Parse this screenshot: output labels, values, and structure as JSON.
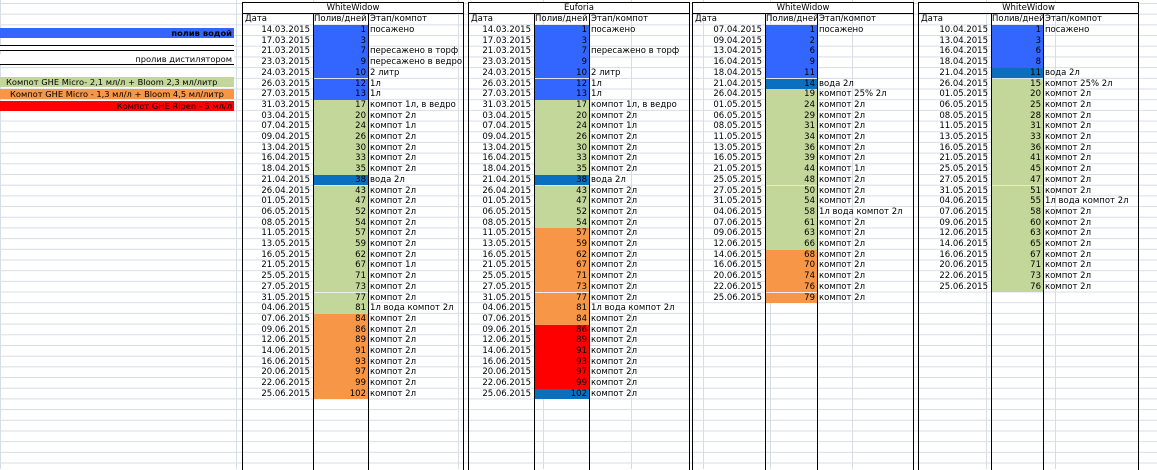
{
  "colors": {
    "blue": "#3366ff",
    "dark_blue": "#0a6fbf",
    "green": "#c4d79b",
    "orange": "#f79646",
    "red": "#ff0000",
    "grid": "#d6dde6"
  },
  "legend": [
    {
      "text": "полив водой",
      "bg": "#3366ff",
      "bold": true
    },
    {
      "text": "",
      "bg": "#ffffff",
      "boxed": true
    },
    {
      "text": "пролив дистилятором",
      "bg": "#ffffff",
      "underline": true
    },
    {
      "text": "Компот GHE Micro- 2,1 мл/л  + Bloom 2,3 мл/литр",
      "bg": "#c4d79b"
    },
    {
      "text": "Компот GHE Micro - 1,3 мл/л + Bloom 4,5 мл/литр",
      "bg": "#f79646"
    },
    {
      "text": "Компот GHE Ripen - 5 мл/л",
      "bg": "#ff0000"
    }
  ],
  "headers": {
    "date": "Дата",
    "val": "Полив/дней",
    "note": "Этап/компот"
  },
  "blocks": [
    {
      "title": "WhiteWidow",
      "rows": [
        [
          "14.03.2015",
          "1",
          "посажено",
          "B"
        ],
        [
          "17.03.2015",
          "3",
          "",
          "B"
        ],
        [
          "21.03.2015",
          "7",
          "пересажено в торф",
          "B"
        ],
        [
          "23.03.2015",
          "9",
          "пересажено в ведро",
          "B"
        ],
        [
          "24.03.2015",
          "10",
          "2 литр",
          "B"
        ],
        [
          "26.03.2015",
          "12",
          "1л",
          "B"
        ],
        [
          "27.03.2015",
          "13",
          "1л",
          "B"
        ],
        [
          "31.03.2015",
          "17",
          "компот 1л, в ведро",
          "G"
        ],
        [
          "03.04.2015",
          "20",
          "компот 2л",
          "G"
        ],
        [
          "07.04.2015",
          "24",
          "компот 1л",
          "G"
        ],
        [
          "09.04.2015",
          "26",
          "компот 2л",
          "G"
        ],
        [
          "13.04.2015",
          "30",
          "компот 2л",
          "G"
        ],
        [
          "16.04.2015",
          "33",
          "компот 2л",
          "G"
        ],
        [
          "18.04.2015",
          "35",
          "компот 2л",
          "G"
        ],
        [
          "21.04.2015",
          "38",
          "вода 2л",
          "D"
        ],
        [
          "26.04.2015",
          "43",
          "компот 2л",
          "G"
        ],
        [
          "01.05.2015",
          "47",
          "компот 2л",
          "G"
        ],
        [
          "06.05.2015",
          "52",
          "компот 2л",
          "G"
        ],
        [
          "08.05.2015",
          "54",
          "компот 2л",
          "G"
        ],
        [
          "11.05.2015",
          "57",
          "компот 2л",
          "G"
        ],
        [
          "13.05.2015",
          "59",
          "компот 2л",
          "G"
        ],
        [
          "16.05.2015",
          "62",
          "компот 2л",
          "G"
        ],
        [
          "21.05.2015",
          "67",
          "компот 1л",
          "G"
        ],
        [
          "25.05.2015",
          "71",
          "компот 2л",
          "G"
        ],
        [
          "27.05.2015",
          "73",
          "компот 2л",
          "G"
        ],
        [
          "31.05.2015",
          "77",
          "компот 2л",
          "G"
        ],
        [
          "04.06.2015",
          "81",
          "1л вода компот 2л",
          "G"
        ],
        [
          "07.06.2015",
          "84",
          "компот 2л",
          "O"
        ],
        [
          "09.06.2015",
          "86",
          "компот 2л",
          "O"
        ],
        [
          "12.06.2015",
          "89",
          "компот 2л",
          "O"
        ],
        [
          "14.06.2015",
          "91",
          "компот 2л",
          "O"
        ],
        [
          "16.06.2015",
          "93",
          "компот 2л",
          "O"
        ],
        [
          "20.06.2015",
          "97",
          "компот 2л",
          "O"
        ],
        [
          "22.06.2015",
          "99",
          "компот 2л",
          "O"
        ],
        [
          "25.06.2015",
          "102",
          "компот 2л",
          "O"
        ]
      ]
    },
    {
      "title": "Euforia",
      "rows": [
        [
          "14.03.2015",
          "1",
          "посажено",
          "B"
        ],
        [
          "17.03.2015",
          "3",
          "",
          "B"
        ],
        [
          "21.03.2015",
          "7",
          "пересажено в торф",
          "B"
        ],
        [
          "23.03.2015",
          "9",
          "",
          "B"
        ],
        [
          "24.03.2015",
          "10",
          "2 литр",
          "B"
        ],
        [
          "26.03.2015",
          "12",
          "1л",
          "B"
        ],
        [
          "27.03.2015",
          "13",
          "1л",
          "B"
        ],
        [
          "31.03.2015",
          "17",
          "компот 1л, в ведро",
          "G"
        ],
        [
          "03.04.2015",
          "20",
          "компот 2л",
          "G"
        ],
        [
          "07.04.2015",
          "24",
          "компот 1л",
          "G"
        ],
        [
          "09.04.2015",
          "26",
          "компот 2л",
          "G"
        ],
        [
          "13.04.2015",
          "30",
          "компот 2л",
          "G"
        ],
        [
          "16.04.2015",
          "33",
          "компот 2л",
          "G"
        ],
        [
          "18.04.2015",
          "35",
          "компот 2л",
          "G"
        ],
        [
          "21.04.2015",
          "38",
          "вода 2л",
          "D"
        ],
        [
          "26.04.2015",
          "43",
          "компот 2л",
          "G"
        ],
        [
          "01.05.2015",
          "47",
          "компот 2л",
          "G"
        ],
        [
          "06.05.2015",
          "52",
          "компот 2л",
          "G"
        ],
        [
          "08.05.2015",
          "54",
          "компот 2л",
          "G"
        ],
        [
          "11.05.2015",
          "57",
          "компот 2л",
          "O"
        ],
        [
          "13.05.2015",
          "59",
          "компот 2л",
          "O"
        ],
        [
          "16.05.2015",
          "62",
          "компот 2л",
          "O"
        ],
        [
          "21.05.2015",
          "67",
          "компот 2л",
          "O"
        ],
        [
          "25.05.2015",
          "71",
          "компот 2л",
          "O"
        ],
        [
          "27.05.2015",
          "73",
          "компот 2л",
          "O"
        ],
        [
          "31.05.2015",
          "77",
          "компот 2л",
          "O"
        ],
        [
          "04.06.2015",
          "81",
          "1л вода компот 2л",
          "O"
        ],
        [
          "07.06.2015",
          "84",
          "компот 2л",
          "O"
        ],
        [
          "09.06.2015",
          "86",
          "компот 2л",
          "R"
        ],
        [
          "12.06.2015",
          "89",
          "компот 2л",
          "R"
        ],
        [
          "14.06.2015",
          "91",
          "компот 2л",
          "R"
        ],
        [
          "16.06.2015",
          "93",
          "компот 2л",
          "R"
        ],
        [
          "20.06.2015",
          "97",
          "компот 2л",
          "R"
        ],
        [
          "22.06.2015",
          "99",
          "компот 2л",
          "R"
        ],
        [
          "25.06.2015",
          "102",
          "компот 2л",
          "D"
        ]
      ]
    },
    {
      "title": "WhiteWidow",
      "rows": [
        [
          "07.04.2015",
          "1",
          "посажено",
          "B"
        ],
        [
          "09.04.2015",
          "2",
          "",
          "B"
        ],
        [
          "13.04.2015",
          "6",
          "",
          "B"
        ],
        [
          "16.04.2015",
          "9",
          "",
          "B"
        ],
        [
          "18.04.2015",
          "11",
          "",
          "B"
        ],
        [
          "21.04.2015",
          "14",
          "вода 2л",
          "D"
        ],
        [
          "26.04.2015",
          "19",
          "компот 25% 2л",
          "G"
        ],
        [
          "01.05.2015",
          "24",
          "компот 2л",
          "G"
        ],
        [
          "06.05.2015",
          "29",
          "компот 2л",
          "G"
        ],
        [
          "08.05.2015",
          "31",
          "компот 2л",
          "G"
        ],
        [
          "11.05.2015",
          "34",
          "компот 2л",
          "G"
        ],
        [
          "13.05.2015",
          "36",
          "компот 2л",
          "G"
        ],
        [
          "16.05.2015",
          "39",
          "компот 2л",
          "G"
        ],
        [
          "21.05.2015",
          "44",
          "компот 1л",
          "G"
        ],
        [
          "25.05.2015",
          "48",
          "компот 2л",
          "G"
        ],
        [
          "27.05.2015",
          "50",
          "компот 2л",
          "G"
        ],
        [
          "31.05.2015",
          "54",
          "компот 2л",
          "G"
        ],
        [
          "04.06.2015",
          "58",
          "1л вода компот 2л",
          "G"
        ],
        [
          "07.06.2015",
          "61",
          "компот 2л",
          "G"
        ],
        [
          "09.06.2015",
          "63",
          "компот 2л",
          "G"
        ],
        [
          "12.06.2015",
          "66",
          "компот 2л",
          "G"
        ],
        [
          "14.06.2015",
          "68",
          "компот 2л",
          "O"
        ],
        [
          "16.06.2015",
          "70",
          "компот 2л",
          "O"
        ],
        [
          "20.06.2015",
          "74",
          "компот 2л",
          "O"
        ],
        [
          "22.06.2015",
          "76",
          "компот 2л",
          "O"
        ],
        [
          "25.06.2015",
          "79",
          "компот 2л",
          "O"
        ]
      ]
    },
    {
      "title": "WhiteWidow",
      "rows": [
        [
          "10.04.2015",
          "1",
          "посажено",
          "B"
        ],
        [
          "13.04.2015",
          "3",
          "",
          "B"
        ],
        [
          "16.04.2015",
          "6",
          "",
          "B"
        ],
        [
          "18.04.2015",
          "8",
          "",
          "B"
        ],
        [
          "21.04.2015",
          "11",
          "вода 2л",
          "D"
        ],
        [
          "26.04.2015",
          "15",
          "компот 25% 2л",
          "G"
        ],
        [
          "01.05.2015",
          "20",
          "компот 2л",
          "G"
        ],
        [
          "06.05.2015",
          "25",
          "компот 2л",
          "G"
        ],
        [
          "08.05.2015",
          "28",
          "компот 2л",
          "G"
        ],
        [
          "11.05.2015",
          "31",
          "компот 2л",
          "G"
        ],
        [
          "13.05.2015",
          "33",
          "компот 2л",
          "G"
        ],
        [
          "16.05.2015",
          "36",
          "компот 2л",
          "G"
        ],
        [
          "21.05.2015",
          "41",
          "компот 2л",
          "G"
        ],
        [
          "25.05.2015",
          "45",
          "компот 2л",
          "G"
        ],
        [
          "27.05.2015",
          "47",
          "компот 2л",
          "G"
        ],
        [
          "31.05.2015",
          "51",
          "компот 2л",
          "G"
        ],
        [
          "04.06.2015",
          "55",
          "1л вода компот 2л",
          "G"
        ],
        [
          "07.06.2015",
          "58",
          "компот 2л",
          "G"
        ],
        [
          "09.06.2015",
          "60",
          "компот 2л",
          "G"
        ],
        [
          "12.06.2015",
          "63",
          "компот 2л",
          "G"
        ],
        [
          "14.06.2015",
          "65",
          "компот 2л",
          "G"
        ],
        [
          "16.06.2015",
          "67",
          "компот 2л",
          "G"
        ],
        [
          "20.06.2015",
          "71",
          "компот 2л",
          "G"
        ],
        [
          "22.06.2015",
          "73",
          "компот 2л",
          "G"
        ],
        [
          "25.06.2015",
          "76",
          "компот 2л",
          "G"
        ]
      ]
    }
  ]
}
